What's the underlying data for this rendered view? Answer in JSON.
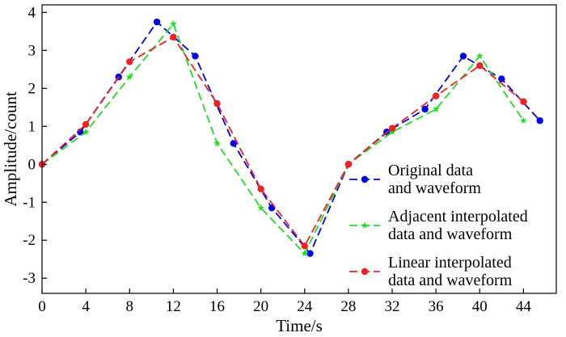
{
  "chart_data": {
    "type": "line",
    "xlabel": "Time/s",
    "ylabel": "Amplitude/count",
    "xlim": [
      0,
      47
    ],
    "ylim": [
      -3.4,
      4.2
    ],
    "x_ticks": [
      0,
      4,
      8,
      12,
      16,
      20,
      24,
      28,
      32,
      36,
      40,
      44
    ],
    "y_ticks": [
      -3,
      -2,
      -1,
      0,
      1,
      2,
      3,
      4
    ],
    "grid": false,
    "legend_position": "bottom-right",
    "series": [
      {
        "name_lines": [
          "Original data",
          "and waveform"
        ],
        "color": "#0000ee",
        "marker": "circle",
        "x": [
          0,
          3.5,
          7,
          10.5,
          14,
          17.5,
          21,
          24.5,
          28,
          31.5,
          35,
          38.5,
          42,
          45.5
        ],
        "y": [
          0,
          0.85,
          2.3,
          3.75,
          2.85,
          0.55,
          -1.15,
          -2.35,
          0,
          0.85,
          1.45,
          2.85,
          2.25,
          1.15
        ]
      },
      {
        "name_lines": [
          "Adjacent interpolated",
          "data and waveform"
        ],
        "color": "#22dd22",
        "marker": "star",
        "x": [
          0,
          4,
          8,
          12,
          16,
          20,
          24,
          28,
          32,
          36,
          40,
          44
        ],
        "y": [
          0,
          0.85,
          2.3,
          3.7,
          0.55,
          -1.15,
          -2.35,
          0,
          0.85,
          1.45,
          2.85,
          1.15
        ]
      },
      {
        "name_lines": [
          "Linear interpolated",
          "data and waveform"
        ],
        "color": "#ee2222",
        "marker": "circle",
        "x": [
          0,
          4,
          8,
          12,
          16,
          20,
          24,
          28,
          32,
          36,
          40,
          44
        ],
        "y": [
          0,
          1.05,
          2.7,
          3.35,
          1.6,
          -0.65,
          -2.15,
          0,
          0.95,
          1.8,
          2.6,
          1.65
        ]
      }
    ]
  }
}
